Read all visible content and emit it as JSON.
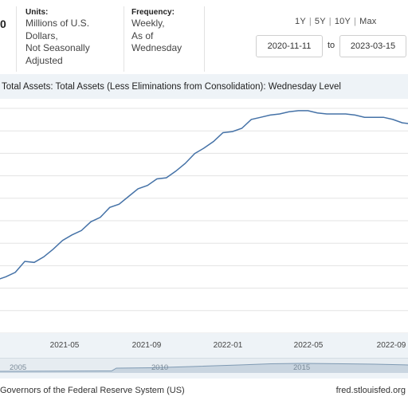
{
  "header": {
    "cut_value": "0",
    "units_label": "Units:",
    "units_value": [
      "Millions of U.S.",
      "Dollars,",
      "Not Seasonally",
      "Adjusted"
    ],
    "frequency_label": "Frequency:",
    "frequency_value": [
      "Weekly,",
      "As of",
      "Wednesday"
    ],
    "ranges": [
      "1Y",
      "5Y",
      "10Y",
      "Max"
    ],
    "range_sep": "|",
    "start_date": "2020-11-11",
    "to_label": "to",
    "end_date": "2023-03-15"
  },
  "chart_data": {
    "type": "line",
    "title": "Total Assets: Total Assets (Less Eliminations from Consolidation): Wednesday Level",
    "xlabel": "",
    "ylabel": "",
    "grid": true,
    "x_ticks": [
      "2021-05",
      "2021-09",
      "2022-01",
      "2022-05",
      "2022-09"
    ],
    "series": [
      {
        "color": "#4572a7",
        "x": [
          "2020-11-11",
          "2020-11-25",
          "2020-12-09",
          "2020-12-23",
          "2021-01-06",
          "2021-01-20",
          "2021-02-03",
          "2021-02-17",
          "2021-03-03",
          "2021-03-17",
          "2021-03-31",
          "2021-04-14",
          "2021-04-28",
          "2021-05-12",
          "2021-05-26",
          "2021-06-09",
          "2021-06-23",
          "2021-07-07",
          "2021-07-21",
          "2021-08-04",
          "2021-08-18",
          "2021-09-01",
          "2021-09-15",
          "2021-09-29",
          "2021-10-13",
          "2021-10-27",
          "2021-11-10",
          "2021-11-24",
          "2021-12-08",
          "2021-12-22",
          "2022-01-05",
          "2022-01-19",
          "2022-02-02",
          "2022-02-16",
          "2022-03-02",
          "2022-03-16",
          "2022-03-30",
          "2022-04-13",
          "2022-04-27",
          "2022-05-11",
          "2022-05-25",
          "2022-06-08",
          "2022-06-22",
          "2022-07-06",
          "2022-07-20",
          "2022-08-03",
          "2022-08-17",
          "2022-08-31",
          "2022-09-14",
          "2022-09-28",
          "2022-10-12",
          "2022-10-26"
        ],
        "values": [
          7.15,
          7.19,
          7.27,
          7.33,
          7.31,
          7.41,
          7.44,
          7.48,
          7.58,
          7.57,
          7.62,
          7.69,
          7.77,
          7.82,
          7.86,
          7.94,
          7.98,
          8.07,
          8.1,
          8.17,
          8.24,
          8.27,
          8.33,
          8.34,
          8.4,
          8.47,
          8.56,
          8.61,
          8.67,
          8.75,
          8.76,
          8.79,
          8.87,
          8.89,
          8.91,
          8.92,
          8.94,
          8.95,
          8.95,
          8.93,
          8.92,
          8.92,
          8.92,
          8.91,
          8.89,
          8.89,
          8.89,
          8.87,
          8.84,
          8.83,
          8.79,
          8.73
        ]
      }
    ]
  },
  "navigator": {
    "labels": [
      "2005",
      "2010",
      "2015"
    ]
  },
  "footer": {
    "source": "Governors of the Federal Reserve System (US)",
    "url": "fred.stlouisfed.org"
  }
}
